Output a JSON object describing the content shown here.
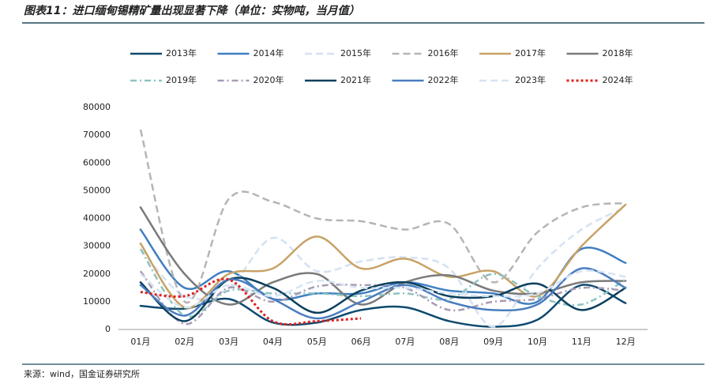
{
  "chart_data": {
    "type": "line",
    "title": "图表11：进口缅甸锡精矿量出现显著下降（单位：实物吨，当月值）",
    "source": "来源：wind，国金证券研究所",
    "categories": [
      "01月",
      "02月",
      "03月",
      "04月",
      "05月",
      "06月",
      "07月",
      "08月",
      "09月",
      "10月",
      "11月",
      "12月"
    ],
    "ylim": [
      0,
      80000
    ],
    "yticks": [
      0,
      10000,
      20000,
      30000,
      40000,
      50000,
      60000,
      70000,
      80000
    ],
    "grid": false,
    "smooth": true,
    "series": [
      {
        "name": "2013年",
        "color": "#0d4a6e",
        "dash": "solid",
        "values": [
          8500,
          7500,
          11000,
          2500,
          2500,
          7000,
          8000,
          3000,
          1000,
          3500,
          16000,
          9500
        ]
      },
      {
        "name": "2014年",
        "color": "#3f7fc0",
        "dash": "solid",
        "values": [
          36000,
          15000,
          21000,
          11000,
          13000,
          13000,
          17000,
          14000,
          13000,
          10000,
          29000,
          24000
        ]
      },
      {
        "name": "2015年",
        "color": "#d3e2f2",
        "dash": "dashed",
        "values": [
          29000,
          12000,
          15000,
          33000,
          21000,
          24500,
          26000,
          22000,
          1000,
          22000,
          36000,
          44000
        ]
      },
      {
        "name": "2016年",
        "color": "#b5b5b5",
        "dash": "dashed",
        "values": [
          72000,
          10000,
          47000,
          46000,
          40000,
          39000,
          36000,
          38000,
          17000,
          35000,
          44000,
          45500
        ]
      },
      {
        "name": "2017年",
        "color": "#c8a266",
        "dash": "solid",
        "values": [
          31000,
          8000,
          20000,
          22000,
          33500,
          22000,
          25500,
          19000,
          21000,
          12000,
          30000,
          45000
        ]
      },
      {
        "name": "2018年",
        "color": "#7a7a7a",
        "dash": "solid",
        "values": [
          44000,
          20000,
          9000,
          17000,
          20000,
          9000,
          17000,
          19500,
          14000,
          13000,
          17000,
          17500
        ]
      },
      {
        "name": "2019年",
        "color": "#8dc3c1",
        "dash": "dashdot",
        "values": [
          29000,
          5000,
          14000,
          13000,
          13000,
          12000,
          13000,
          11000,
          20000,
          12000,
          9000,
          18000
        ]
      },
      {
        "name": "2020年",
        "color": "#a89bb5",
        "dash": "dashdot",
        "values": [
          21000,
          2000,
          15000,
          10000,
          15500,
          16000,
          15000,
          7000,
          10000,
          11000,
          15000,
          14000
        ]
      },
      {
        "name": "2021年",
        "color": "#0b3f5e",
        "dash": "solid",
        "values": [
          17000,
          3000,
          18000,
          15000,
          6000,
          14000,
          17000,
          12000,
          12000,
          16500,
          7000,
          15000
        ]
      },
      {
        "name": "2022年",
        "color": "#4a7dbf",
        "dash": "solid",
        "values": [
          16000,
          5000,
          18000,
          11000,
          4000,
          10000,
          16000,
          10000,
          7000,
          9000,
          22000,
          15000
        ]
      },
      {
        "name": "2023年",
        "color": "#d6e4f3",
        "dash": "dashed",
        "values": [
          20000,
          8000,
          16000,
          12000,
          17500,
          15000,
          15000,
          13000,
          12000,
          13000,
          21000,
          19000
        ]
      },
      {
        "name": "2024年",
        "color": "#e02020",
        "dash": "dotted",
        "values": [
          13500,
          12000,
          18000,
          3000,
          3000,
          4000,
          null,
          null,
          null,
          null,
          null,
          null
        ]
      }
    ]
  }
}
